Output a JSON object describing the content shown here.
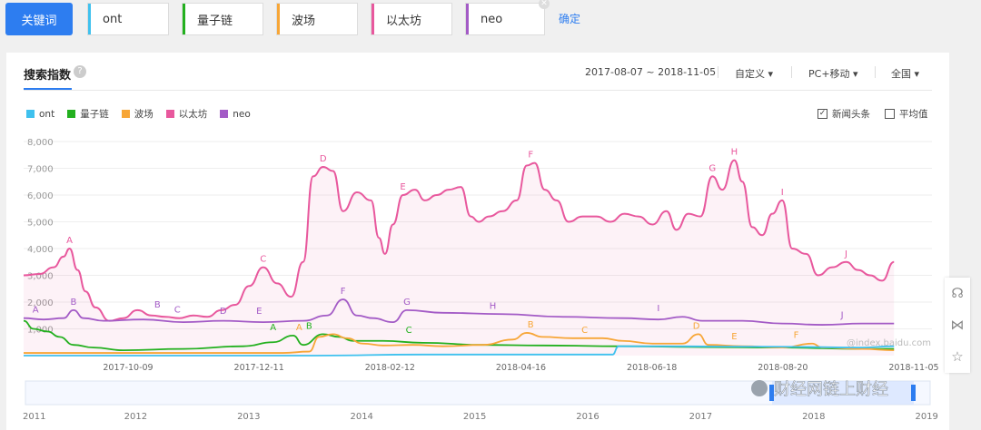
{
  "toolbar": {
    "keyword_button": "关键词",
    "keywords": [
      {
        "label": "ont",
        "color": "#3fc1ee"
      },
      {
        "label": "量子链",
        "color": "#23b01f"
      },
      {
        "label": "波场",
        "color": "#f7a637"
      },
      {
        "label": "以太坊",
        "color": "#e8589d"
      },
      {
        "label": "neo",
        "color": "#a35bc6"
      }
    ],
    "confirm": "确定"
  },
  "panel": {
    "title": "搜索指数",
    "date_range": "2017-08-07 ~ 2018-11-05",
    "custom": "自定义",
    "device": "PC+移动",
    "region": "全国",
    "news": "新闻头条",
    "average": "平均值",
    "watermark": "@index.baidu.com",
    "wechat": "财经网链上财经"
  },
  "chart_data": {
    "type": "line",
    "ylim": [
      0,
      8000
    ],
    "yticks": [
      "8,000",
      "7,000",
      "6,000",
      "5,000",
      "4,000",
      "3,000",
      "2,000",
      "1,000"
    ],
    "xticks": [
      "2017-10-09",
      "2017-12-11",
      "2018-02-12",
      "2018-04-16",
      "2018-06-18",
      "2018-08-20",
      "2018-11-05"
    ],
    "nav_years": [
      "2011",
      "2012",
      "2013",
      "2014",
      "2015",
      "2016",
      "2017",
      "2018",
      "2019"
    ],
    "x_span_days": 455,
    "series": [
      {
        "name": "以太坊",
        "color": "#e8589d",
        "points": [
          [
            0,
            3000
          ],
          [
            8,
            3050
          ],
          [
            15,
            3300
          ],
          [
            20,
            3700
          ],
          [
            23,
            4000
          ],
          [
            27,
            3200
          ],
          [
            31,
            2400
          ],
          [
            36,
            1800
          ],
          [
            43,
            1300
          ],
          [
            50,
            1400
          ],
          [
            57,
            1700
          ],
          [
            64,
            1500
          ],
          [
            71,
            1450
          ],
          [
            78,
            1400
          ],
          [
            85,
            1500
          ],
          [
            92,
            1450
          ],
          [
            99,
            1700
          ],
          [
            106,
            1900
          ],
          [
            113,
            2600
          ],
          [
            120,
            3300
          ],
          [
            127,
            2700
          ],
          [
            134,
            2200
          ],
          [
            140,
            3500
          ],
          [
            145,
            6700
          ],
          [
            150,
            7050
          ],
          [
            155,
            6900
          ],
          [
            160,
            5400
          ],
          [
            167,
            6100
          ],
          [
            174,
            5800
          ],
          [
            178,
            4400
          ],
          [
            181,
            3800
          ],
          [
            185,
            4900
          ],
          [
            190,
            6000
          ],
          [
            196,
            6200
          ],
          [
            201,
            5800
          ],
          [
            207,
            6000
          ],
          [
            213,
            6200
          ],
          [
            219,
            6300
          ],
          [
            224,
            5200
          ],
          [
            228,
            5000
          ],
          [
            233,
            5200
          ],
          [
            240,
            5400
          ],
          [
            247,
            5800
          ],
          [
            252,
            7100
          ],
          [
            256,
            7200
          ],
          [
            261,
            6200
          ],
          [
            267,
            5800
          ],
          [
            273,
            5000
          ],
          [
            280,
            5200
          ],
          [
            287,
            5200
          ],
          [
            294,
            5000
          ],
          [
            301,
            5300
          ],
          [
            308,
            5200
          ],
          [
            315,
            4900
          ],
          [
            322,
            5400
          ],
          [
            327,
            4700
          ],
          [
            333,
            5300
          ],
          [
            339,
            5200
          ],
          [
            345,
            6700
          ],
          [
            350,
            6200
          ],
          [
            356,
            7300
          ],
          [
            360,
            6500
          ],
          [
            365,
            4800
          ],
          [
            370,
            4500
          ],
          [
            375,
            5300
          ],
          [
            380,
            5800
          ],
          [
            385,
            4000
          ],
          [
            392,
            3800
          ],
          [
            398,
            3000
          ],
          [
            405,
            3300
          ],
          [
            412,
            3500
          ],
          [
            418,
            3200
          ],
          [
            424,
            3000
          ],
          [
            430,
            2800
          ],
          [
            436,
            3500
          ]
        ]
      },
      {
        "name": "neo",
        "color": "#a35bc6",
        "points": [
          [
            0,
            1400
          ],
          [
            10,
            1350
          ],
          [
            20,
            1400
          ],
          [
            25,
            1700
          ],
          [
            30,
            1400
          ],
          [
            40,
            1300
          ],
          [
            60,
            1350
          ],
          [
            80,
            1250
          ],
          [
            100,
            1300
          ],
          [
            120,
            1250
          ],
          [
            140,
            1300
          ],
          [
            152,
            1500
          ],
          [
            160,
            2100
          ],
          [
            167,
            1500
          ],
          [
            175,
            1400
          ],
          [
            185,
            1250
          ],
          [
            192,
            1700
          ],
          [
            210,
            1600
          ],
          [
            240,
            1550
          ],
          [
            270,
            1450
          ],
          [
            300,
            1400
          ],
          [
            318,
            1350
          ],
          [
            330,
            1450
          ],
          [
            340,
            1300
          ],
          [
            360,
            1300
          ],
          [
            380,
            1200
          ],
          [
            400,
            1150
          ],
          [
            420,
            1200
          ],
          [
            436,
            1200
          ]
        ]
      },
      {
        "name": "量子链",
        "color": "#23b01f",
        "points": [
          [
            0,
            1300
          ],
          [
            5,
            1000
          ],
          [
            12,
            900
          ],
          [
            18,
            700
          ],
          [
            25,
            400
          ],
          [
            35,
            300
          ],
          [
            50,
            200
          ],
          [
            80,
            250
          ],
          [
            110,
            350
          ],
          [
            125,
            500
          ],
          [
            135,
            750
          ],
          [
            140,
            400
          ],
          [
            150,
            800
          ],
          [
            158,
            700
          ],
          [
            165,
            550
          ],
          [
            180,
            550
          ],
          [
            200,
            480
          ],
          [
            230,
            400
          ],
          [
            260,
            380
          ],
          [
            300,
            350
          ],
          [
            340,
            320
          ],
          [
            380,
            300
          ],
          [
            420,
            250
          ],
          [
            436,
            250
          ]
        ]
      },
      {
        "name": "波场",
        "color": "#f7a637",
        "points": [
          [
            0,
            100
          ],
          [
            130,
            100
          ],
          [
            143,
            150
          ],
          [
            148,
            700
          ],
          [
            155,
            800
          ],
          [
            162,
            650
          ],
          [
            170,
            450
          ],
          [
            180,
            380
          ],
          [
            195,
            400
          ],
          [
            210,
            350
          ],
          [
            230,
            400
          ],
          [
            245,
            600
          ],
          [
            252,
            850
          ],
          [
            260,
            700
          ],
          [
            275,
            650
          ],
          [
            290,
            650
          ],
          [
            300,
            550
          ],
          [
            315,
            450
          ],
          [
            330,
            450
          ],
          [
            338,
            800
          ],
          [
            343,
            400
          ],
          [
            360,
            350
          ],
          [
            380,
            300
          ],
          [
            395,
            450
          ],
          [
            400,
            300
          ],
          [
            420,
            250
          ],
          [
            436,
            200
          ]
        ]
      },
      {
        "name": "ont",
        "color": "#3fc1ee",
        "points": [
          [
            0,
            0
          ],
          [
            145,
            0
          ],
          [
            200,
            40
          ],
          [
            295,
            40
          ],
          [
            298,
            350
          ],
          [
            320,
            350
          ],
          [
            380,
            330
          ],
          [
            420,
            300
          ],
          [
            436,
            350
          ]
        ]
      }
    ],
    "annotations": [
      {
        "series": "以太坊",
        "labels": [
          [
            "A",
            23,
            4000
          ],
          [
            "C",
            120,
            3300
          ],
          [
            "D",
            150,
            7050
          ],
          [
            "E",
            190,
            6000
          ],
          [
            "F",
            254,
            7200
          ],
          [
            "G",
            345,
            6700
          ],
          [
            "H",
            356,
            7300
          ],
          [
            "I",
            380,
            5800
          ],
          [
            "J",
            412,
            3500
          ]
        ]
      },
      {
        "series": "neo",
        "labels": [
          [
            "A",
            6,
            1400
          ],
          [
            "B",
            25,
            1700
          ],
          [
            "B",
            67,
            1600
          ],
          [
            "C",
            77,
            1400
          ],
          [
            "D",
            100,
            1350
          ],
          [
            "E",
            118,
            1350
          ],
          [
            "F",
            160,
            2100
          ],
          [
            "G",
            192,
            1700
          ],
          [
            "H",
            235,
            1550
          ],
          [
            "I",
            318,
            1450
          ],
          [
            "J",
            410,
            1200
          ]
        ]
      },
      {
        "series": "量子链",
        "labels": [
          [
            "A",
            125,
            750
          ],
          [
            "B",
            143,
            800
          ],
          [
            "C",
            193,
            650
          ]
        ]
      },
      {
        "series": "波场",
        "labels": [
          [
            "A",
            138,
            750
          ],
          [
            "B",
            254,
            850
          ],
          [
            "C",
            281,
            650
          ],
          [
            "D",
            337,
            800
          ],
          [
            "E",
            356,
            400
          ],
          [
            "F",
            387,
            450
          ]
        ]
      }
    ]
  }
}
